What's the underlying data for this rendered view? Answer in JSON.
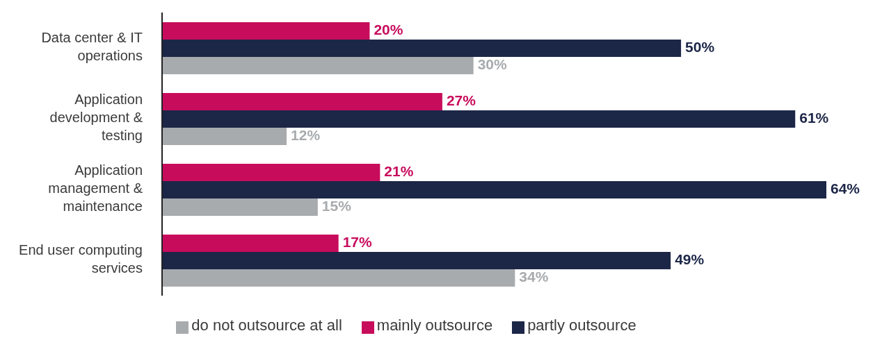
{
  "chart_data": {
    "type": "bar",
    "orientation": "horizontal",
    "categories": [
      "Data center & IT operations",
      "Application development & testing",
      "Application management & maintenance",
      "End user computing services"
    ],
    "series": [
      {
        "name": "mainly outsource",
        "color": "#c80c5c",
        "values": [
          20,
          27,
          21,
          17
        ],
        "value_labels": [
          "20%",
          "27%",
          "21%",
          "17%"
        ]
      },
      {
        "name": "partly outsource",
        "color": "#1c2647",
        "values": [
          50,
          61,
          64,
          49
        ],
        "value_labels": [
          "50%",
          "61%",
          "64%",
          "49%"
        ]
      },
      {
        "name": "do not outsource at all",
        "color": "#a8abae",
        "values": [
          30,
          12,
          15,
          34
        ],
        "value_labels": [
          "30%",
          "12%",
          "15%",
          "34%"
        ]
      }
    ],
    "legend": "bottom",
    "grid": false
  }
}
